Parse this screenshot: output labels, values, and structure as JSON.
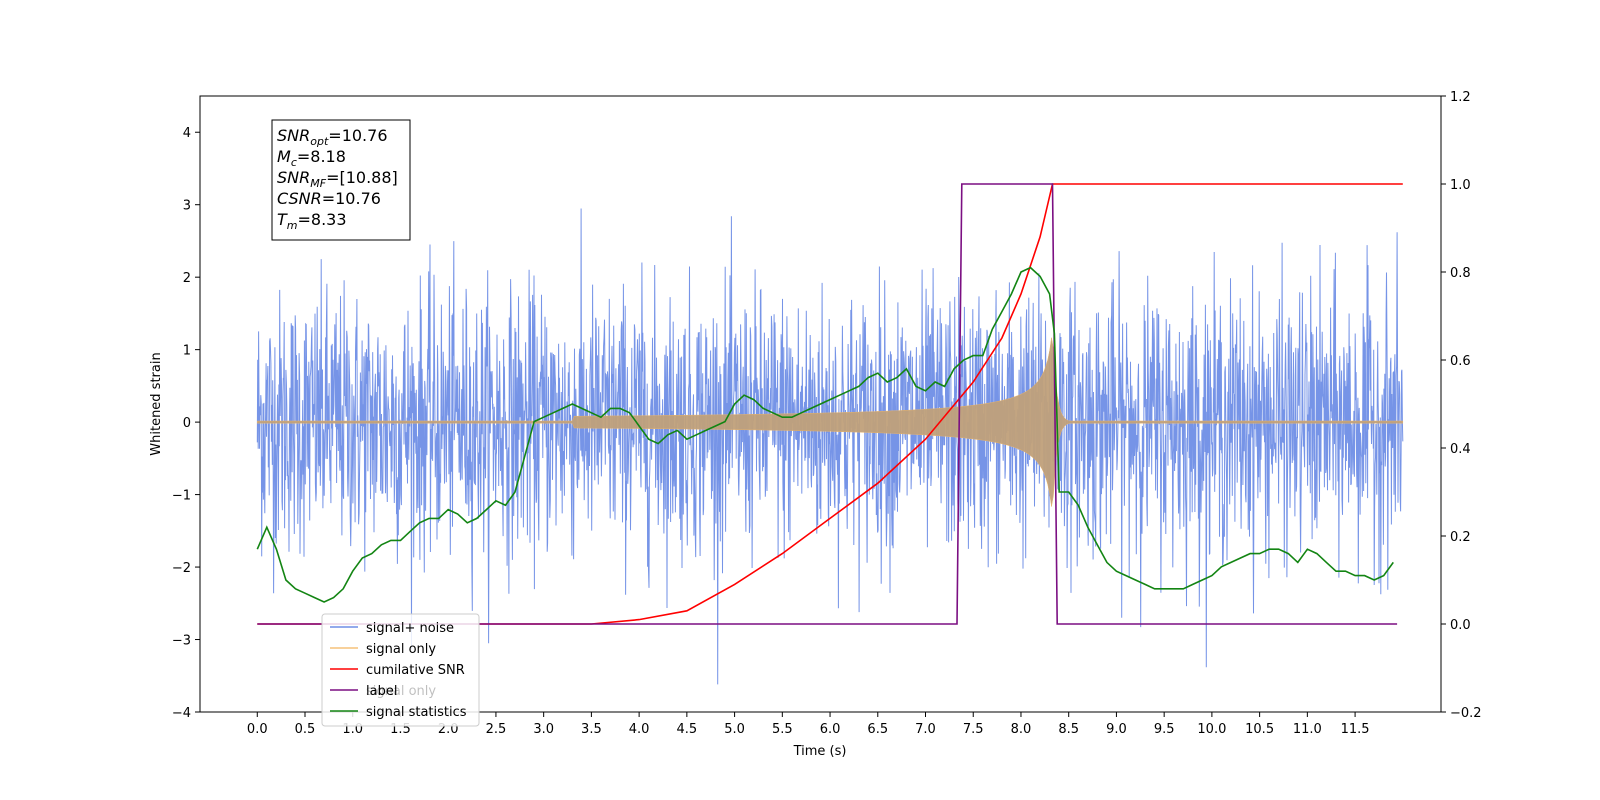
{
  "chart_data": {
    "type": "line",
    "xlabel": "Time (s)",
    "ylabel": "Whitened strain",
    "xlim": [
      -0.6,
      12.4
    ],
    "ylim": [
      -4.0,
      4.5
    ],
    "y2lim": [
      -0.2,
      1.2
    ],
    "x_ticks": [
      "0.0",
      "0.5",
      "1.0",
      "1.5",
      "2.0",
      "2.5",
      "3.0",
      "3.5",
      "4.0",
      "4.5",
      "5.0",
      "5.5",
      "6.0",
      "6.5",
      "7.0",
      "7.5",
      "8.0",
      "8.5",
      "9.0",
      "9.5",
      "10.0",
      "10.5",
      "11.0",
      "11.5"
    ],
    "y_ticks": [
      "4",
      "3",
      "2",
      "1",
      "0",
      "−1",
      "−2",
      "−3",
      "−4"
    ],
    "y2_ticks": [
      "1.2",
      "1.0",
      "0.8",
      "0.6",
      "0.4",
      "0.2",
      "0.0",
      "−0.2"
    ],
    "grid": false,
    "legend_position": "lower-left",
    "annotation": [
      {
        "var": "SNR",
        "sub": "opt",
        "value": "=10.76"
      },
      {
        "var": "M",
        "sub": "c",
        "value": "=8.18"
      },
      {
        "var": "SNR",
        "sub": "MF",
        "value": "=[10.88]"
      },
      {
        "var": "CSNR",
        "sub": "",
        "value": "=10.76"
      },
      {
        "var": "T",
        "sub": "m",
        "value": "=8.33"
      }
    ],
    "series": [
      {
        "name": "signal+ noise",
        "color": "#6f8ee6",
        "axis": "left",
        "description": "white noise, amplitude about ±2.5, peaks up to ±4, spanning t=0 to 12",
        "x_range": [
          0.0,
          12.0
        ],
        "noise_sigma": 0.9
      },
      {
        "name": "signal only",
        "color": "#e8a33c",
        "axis": "left",
        "description": "chirp with growing amplitude, peak amplitude about 1.3 at t=8.33, then ringdown",
        "x_range": [
          0.0,
          12.0
        ],
        "peak_time": 8.33,
        "peak_amplitude": 1.3
      },
      {
        "name": "cumilative SNR",
        "color": "#ff0000",
        "axis": "right",
        "x": [
          0.0,
          3.5,
          4.0,
          4.5,
          5.0,
          5.5,
          6.0,
          6.5,
          7.0,
          7.5,
          7.8,
          8.0,
          8.2,
          8.33,
          8.34,
          12.0
        ],
        "values": [
          0.0,
          0.0,
          0.01,
          0.03,
          0.09,
          0.16,
          0.24,
          0.32,
          0.42,
          0.55,
          0.65,
          0.75,
          0.88,
          1.0,
          1.0,
          1.0
        ]
      },
      {
        "name": "label",
        "color": "#7b0f82",
        "axis": "right",
        "x": [
          0.0,
          7.33,
          7.38,
          8.33,
          8.38,
          11.94
        ],
        "values": [
          0.0,
          0.0,
          1.0,
          1.0,
          0.0,
          0.0
        ]
      },
      {
        "name": "signal statistics",
        "color": "#138513",
        "axis": "right",
        "x": [
          0.0,
          0.1,
          0.2,
          0.3,
          0.4,
          0.5,
          0.6,
          0.7,
          0.8,
          0.9,
          1.0,
          1.1,
          1.2,
          1.3,
          1.4,
          1.5,
          1.6,
          1.7,
          1.8,
          1.9,
          2.0,
          2.1,
          2.2,
          2.3,
          2.4,
          2.5,
          2.6,
          2.7,
          2.8,
          2.9,
          3.0,
          3.1,
          3.2,
          3.3,
          3.4,
          3.5,
          3.6,
          3.7,
          3.8,
          3.9,
          4.0,
          4.1,
          4.2,
          4.3,
          4.4,
          4.5,
          4.6,
          4.7,
          4.8,
          4.9,
          5.0,
          5.1,
          5.2,
          5.3,
          5.4,
          5.5,
          5.6,
          5.7,
          5.8,
          5.9,
          6.0,
          6.1,
          6.2,
          6.3,
          6.4,
          6.5,
          6.6,
          6.7,
          6.8,
          6.9,
          7.0,
          7.1,
          7.2,
          7.3,
          7.4,
          7.5,
          7.6,
          7.7,
          7.8,
          7.9,
          8.0,
          8.1,
          8.2,
          8.3,
          8.35,
          8.4,
          8.5,
          8.6,
          8.7,
          8.8,
          8.9,
          9.0,
          9.1,
          9.2,
          9.3,
          9.4,
          9.5,
          9.6,
          9.7,
          9.8,
          9.9,
          10.0,
          10.1,
          10.2,
          10.3,
          10.4,
          10.5,
          10.6,
          10.7,
          10.8,
          10.9,
          11.0,
          11.1,
          11.2,
          11.3,
          11.4,
          11.5,
          11.6,
          11.7,
          11.8,
          11.9
        ],
        "values": [
          0.17,
          0.22,
          0.17,
          0.1,
          0.08,
          0.07,
          0.06,
          0.05,
          0.06,
          0.08,
          0.12,
          0.15,
          0.16,
          0.18,
          0.19,
          0.19,
          0.21,
          0.23,
          0.24,
          0.24,
          0.26,
          0.25,
          0.23,
          0.24,
          0.26,
          0.28,
          0.27,
          0.3,
          0.38,
          0.46,
          0.47,
          0.48,
          0.49,
          0.5,
          0.49,
          0.48,
          0.47,
          0.49,
          0.49,
          0.48,
          0.45,
          0.42,
          0.41,
          0.43,
          0.44,
          0.42,
          0.43,
          0.44,
          0.45,
          0.46,
          0.5,
          0.52,
          0.51,
          0.49,
          0.48,
          0.47,
          0.47,
          0.48,
          0.49,
          0.5,
          0.51,
          0.52,
          0.53,
          0.54,
          0.56,
          0.57,
          0.55,
          0.56,
          0.58,
          0.54,
          0.53,
          0.55,
          0.54,
          0.58,
          0.6,
          0.61,
          0.61,
          0.67,
          0.71,
          0.75,
          0.8,
          0.81,
          0.79,
          0.75,
          0.66,
          0.3,
          0.3,
          0.27,
          0.22,
          0.18,
          0.14,
          0.12,
          0.11,
          0.1,
          0.09,
          0.08,
          0.08,
          0.08,
          0.08,
          0.09,
          0.1,
          0.11,
          0.13,
          0.14,
          0.15,
          0.16,
          0.16,
          0.17,
          0.17,
          0.16,
          0.14,
          0.17,
          0.16,
          0.14,
          0.12,
          0.12,
          0.11,
          0.11,
          0.1,
          0.11,
          0.14
        ]
      }
    ],
    "legend": [
      {
        "label": "signal+ noise",
        "color": "#6f8ee6"
      },
      {
        "label": "signal only",
        "color": "#f5c27a"
      },
      {
        "label": "cumilative SNR",
        "color": "#ff0000"
      },
      {
        "label": "label",
        "color": "#7b0f82"
      },
      {
        "label": "signal only",
        "color": "#138513"
      },
      {
        "label": "signal statistics",
        "color": "#138513"
      }
    ]
  }
}
